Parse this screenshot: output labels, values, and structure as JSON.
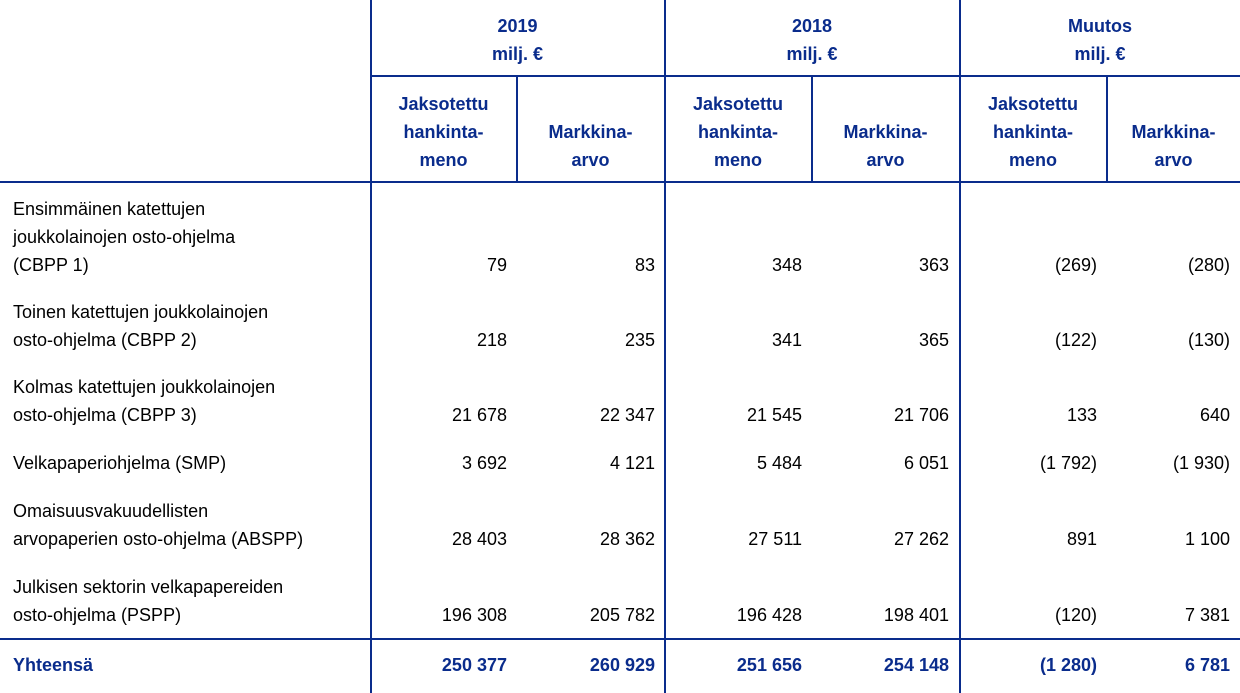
{
  "header": {
    "years": [
      {
        "line1": "2019",
        "line2": "milj. €"
      },
      {
        "line1": "2018",
        "line2": "milj. €"
      },
      {
        "line1": "Muutos",
        "line2": "milj. €"
      }
    ],
    "sub": {
      "cost_lines": [
        "Jaksotettu",
        "hankinta-",
        "meno"
      ],
      "market_lines": [
        "Markkina-",
        "arvo"
      ]
    }
  },
  "rows": [
    {
      "label_lines": [
        "Ensimmäinen katettujen",
        "joukkolainojen osto-ohjelma",
        "(CBPP 1)"
      ],
      "values": [
        "79",
        "83",
        "348",
        "363",
        "(269)",
        "(280)"
      ]
    },
    {
      "label_lines": [
        "Toinen katettujen joukkolainojen",
        "osto-ohjelma (CBPP 2)"
      ],
      "values": [
        "218",
        "235",
        "341",
        "365",
        "(122)",
        "(130)"
      ]
    },
    {
      "label_lines": [
        "Kolmas katettujen joukkolainojen",
        "osto-ohjelma (CBPP 3)"
      ],
      "values": [
        "21 678",
        "22 347",
        "21 545",
        "21 706",
        "133",
        "640"
      ]
    },
    {
      "label_lines": [
        "Velkapaperiohjelma (SMP)"
      ],
      "values": [
        "3 692",
        "4 121",
        "5 484",
        "6 051",
        "(1 792)",
        "(1 930)"
      ]
    },
    {
      "label_lines": [
        "Omaisuusvakuudellisten",
        "arvopaperien osto-ohjelma (ABSPP)"
      ],
      "values": [
        "28 403",
        "28 362",
        "27 511",
        "27 262",
        "891",
        "1 100"
      ]
    },
    {
      "label_lines": [
        "Julkisen sektorin velkapapereiden",
        "osto-ohjelma (PSPP)"
      ],
      "values": [
        "196 308",
        "205 782",
        "196 428",
        "198 401",
        "(120)",
        "7 381"
      ]
    }
  ],
  "total": {
    "label": "Yhteensä",
    "values": [
      "250 377",
      "260 929",
      "251 656",
      "254 148",
      "(1 280)",
      "6 781"
    ]
  }
}
